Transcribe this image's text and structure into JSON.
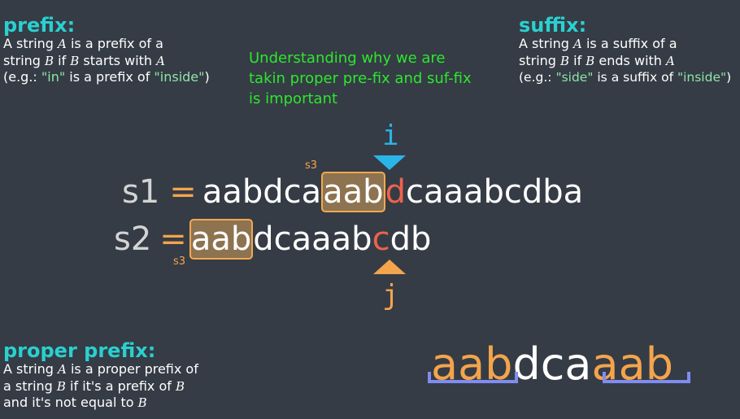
{
  "prefix": {
    "heading": "prefix:",
    "line1a": "A string ",
    "line1var": "A",
    "line1b": " is a prefix of  a",
    "line2a": "string ",
    "line2var": "B",
    "line2b": " if ",
    "line2var2": "B",
    "line2c": " starts with ",
    "line2var3": "A",
    "line3a": "(e.g.: ",
    "line3q1": "\"in\"",
    "line3b": " is a prefix of ",
    "line3q2": "\"inside\"",
    "line3c": ")"
  },
  "suffix": {
    "heading": "suffix:",
    "line1a": "A string ",
    "line1var": "A",
    "line1b": " is a suffix of  a",
    "line2a": "string ",
    "line2var": "B",
    "line2b": " if ",
    "line2var2": "B",
    "line2c": " ends with ",
    "line2var3": "A",
    "line3a": "(e.g.: ",
    "line3q1": "\"side\"",
    "line3b": " is a suffix of ",
    "line3q2": "\"inside\"",
    "line3c": ")"
  },
  "note": {
    "line1": "Understanding why we are",
    "line2": "takin proper pre-fix and suf-fix",
    "line3": "is important"
  },
  "pointers": {
    "i": "i",
    "j": "j"
  },
  "s1": {
    "var": "s1",
    "eq": "=",
    "tag": "s3",
    "chars": [
      "a",
      "a",
      "b",
      "d",
      "c",
      "a",
      "a",
      "a",
      "b",
      "d",
      "c",
      "a",
      "a",
      "a",
      "b",
      "c",
      "d",
      "b",
      "a"
    ]
  },
  "s2": {
    "var": "s2",
    "eq": "=",
    "tag": "s3",
    "chars": [
      "a",
      "a",
      "b",
      "d",
      "c",
      "a",
      "a",
      "a",
      "b",
      "c",
      "d",
      "b"
    ]
  },
  "proper_prefix": {
    "heading": "proper prefix:",
    "line1a": "A string ",
    "line1var": "A",
    "line1b": " is a proper prefix of",
    "line2a": "a string ",
    "line2var": "B",
    "line2b": " if it's a prefix of ",
    "line2var2": "B",
    "line3a": "and it's not equal to ",
    "line3var": "B"
  },
  "example": {
    "prefix": "aab",
    "middle": "dca",
    "suffix": "aab"
  },
  "colors": {
    "background": "#353c45",
    "heading": "#2ad0d0",
    "note": "#2ee62e",
    "match": "#f4a44c",
    "mismatch": "#f0624d",
    "pointer_i": "#2ab5e8",
    "pointer_j": "#f4a44c",
    "bracket": "#7f8cf0"
  }
}
